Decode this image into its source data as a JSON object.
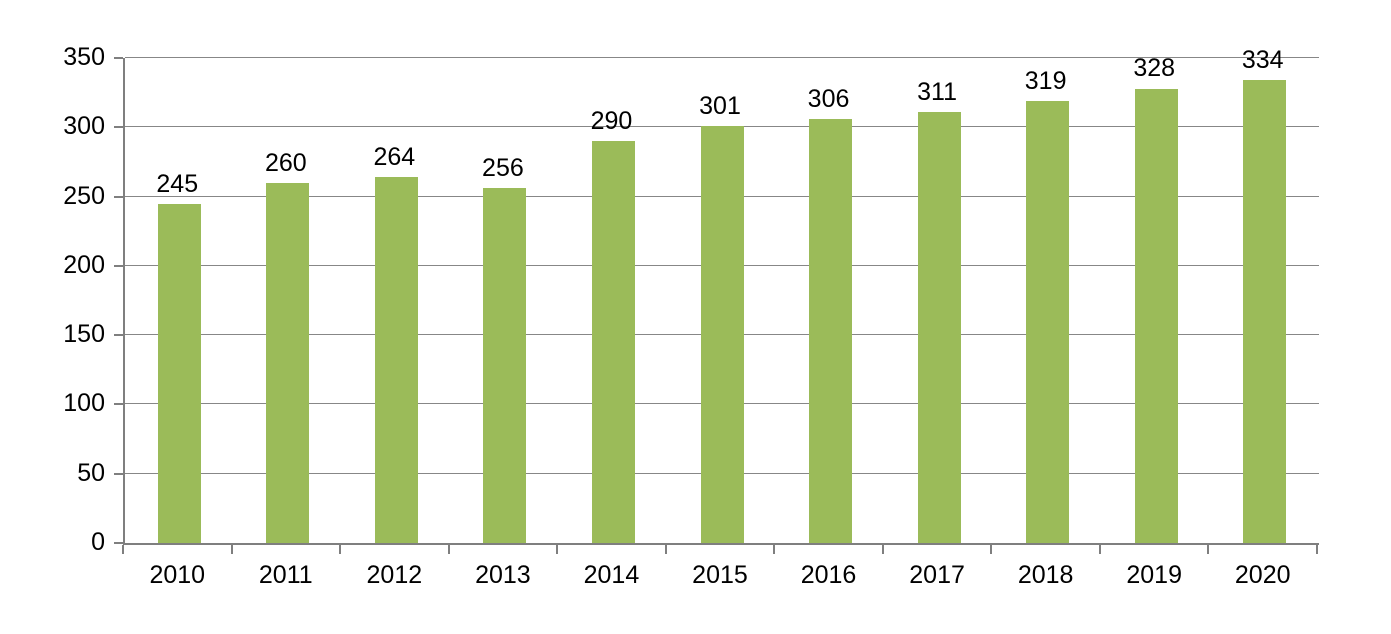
{
  "chart_data": {
    "type": "bar",
    "title": "",
    "xlabel": "",
    "ylabel": "",
    "categories": [
      "2010",
      "2011",
      "2012",
      "2013",
      "2014",
      "2015",
      "2016",
      "2017",
      "2018",
      "2019",
      "2020"
    ],
    "values": [
      245,
      260,
      264,
      256,
      290,
      301,
      306,
      311,
      319,
      328,
      334
    ],
    "ylim": [
      0,
      350
    ],
    "ytick_step": 50,
    "yticks": [
      "0",
      "50",
      "100",
      "150",
      "200",
      "250",
      "300",
      "350"
    ],
    "grid": true,
    "legend": "none",
    "data_labels": true,
    "colors": {
      "bar": "#9BBB59",
      "gridline": "#878787",
      "axis": "#7F7F7F",
      "text": "#000000",
      "background": "#FFFFFF"
    }
  }
}
